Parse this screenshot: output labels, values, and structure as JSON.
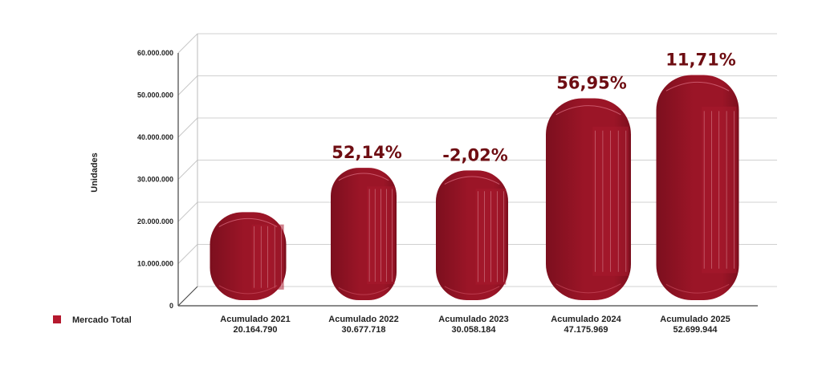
{
  "chart_data": {
    "type": "bar",
    "ylabel": "Unidades",
    "ylim": [
      0,
      60000000
    ],
    "yticks": [
      "0",
      "10.000.000",
      "20.000.000",
      "30.000.000",
      "40.000.000",
      "50.000.000",
      "60.000.000"
    ],
    "ytick_values": [
      0,
      10000000,
      20000000,
      30000000,
      40000000,
      50000000,
      60000000
    ],
    "categories": [
      "Acumulado 2021",
      "Acumulado 2022",
      "Acumulado 2023",
      "Acumulado 2024",
      "Acumulado 2025"
    ],
    "value_labels": [
      "20.164.790",
      "30.677.718",
      "30.058.184",
      "47.175.969",
      "52.699.944"
    ],
    "pct_labels": [
      "",
      "52,14%",
      "-2,02%",
      "56,95%",
      "11,71%"
    ],
    "series": [
      {
        "name": "Mercado Total",
        "values": [
          20164790,
          30677718,
          30058184,
          47175969,
          52699944
        ]
      }
    ],
    "grid": true,
    "legend": "bottom-left",
    "colors": {
      "bar": "#9b1527",
      "bar_dark": "#7c0f1e",
      "pct": "#6e0d12",
      "grid": "#d0d0d0"
    }
  }
}
